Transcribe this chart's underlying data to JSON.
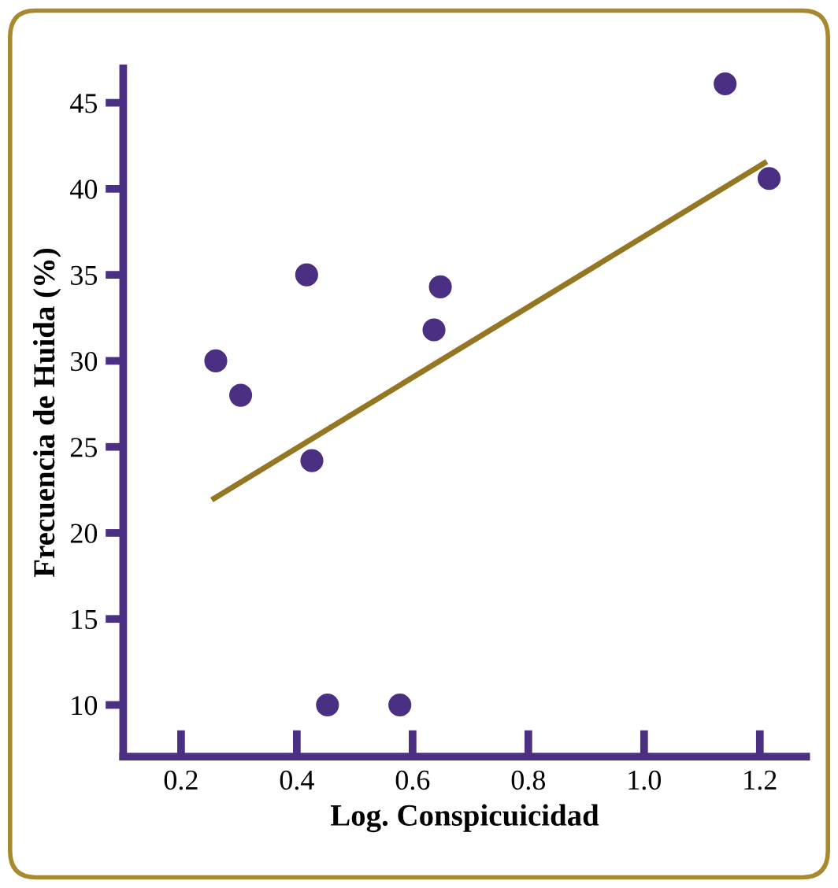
{
  "chart_data": {
    "type": "scatter",
    "xlabel": "Log. Conspicuicidad",
    "ylabel": "Frecuencia de Huida (%)",
    "xlim": [
      0.1,
      1.28
    ],
    "ylim": [
      7,
      47
    ],
    "xticks": [
      0.2,
      0.4,
      0.6,
      0.8,
      {
        "value": 1.0,
        "label": "1.0"
      },
      1.2
    ],
    "yticks": [
      10,
      15,
      20,
      25,
      30,
      35,
      40,
      45
    ],
    "grid": false,
    "legend": false,
    "series": [
      {
        "marker": "circle",
        "color": "#4a2f82",
        "x": [
          0.26,
          0.303,
          0.417,
          0.426,
          0.453,
          0.578,
          0.637,
          0.648,
          1.14,
          1.216
        ],
        "values": [
          30,
          28,
          35,
          24.2,
          10,
          10,
          31.8,
          34.3,
          46.1,
          40.6
        ]
      },
      {
        "type": "line",
        "color": "#957623",
        "x": [
          0.257,
          1.208
        ],
        "values": [
          22,
          41.5
        ],
        "line_style": "solid",
        "marker": "none"
      }
    ]
  }
}
